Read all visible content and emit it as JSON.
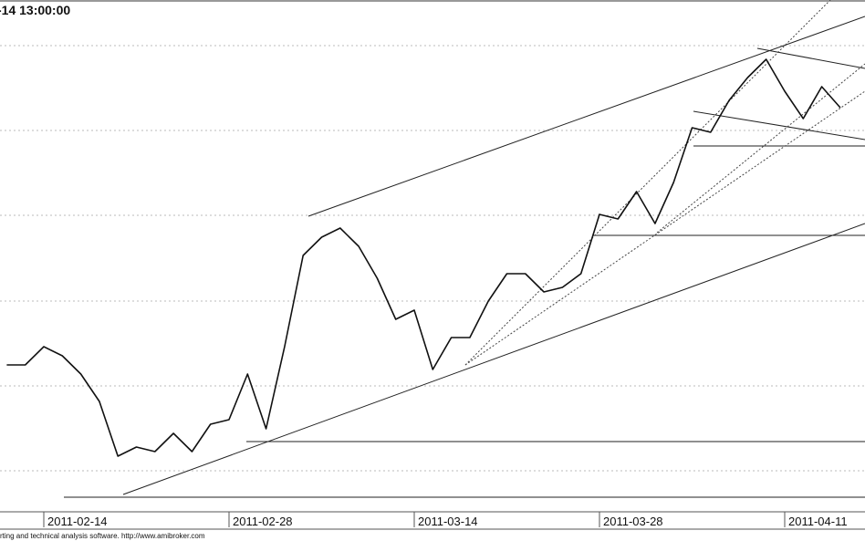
{
  "chart_data": {
    "type": "line",
    "title": "-14 13:00:00",
    "footer": "rting and technical analysis software. http://www.amibroker.com",
    "categories": [
      null,
      null,
      "2011-02-14",
      null,
      null,
      null,
      null,
      null,
      null,
      null,
      null,
      null,
      "2011-02-28",
      null,
      null,
      null,
      null,
      null,
      null,
      null,
      null,
      null,
      "2011-03-14",
      null,
      null,
      null,
      null,
      null,
      null,
      null,
      null,
      null,
      "2011-03-28",
      null,
      null,
      null,
      null,
      null,
      null,
      null,
      null,
      null,
      "2011-04-11",
      null,
      null,
      null
    ],
    "values": [
      145,
      145,
      165,
      155,
      135,
      105,
      45,
      55,
      50,
      70,
      50,
      80,
      85,
      135,
      75,
      165,
      265,
      285,
      295,
      275,
      240,
      195,
      205,
      140,
      175,
      175,
      215,
      245,
      245,
      225,
      230,
      245,
      310,
      305,
      335,
      300,
      345,
      405,
      400,
      435,
      460,
      480,
      445,
      415,
      450,
      427
    ],
    "color": "#111111",
    "ylim": [
      0,
      545
    ]
  }
}
